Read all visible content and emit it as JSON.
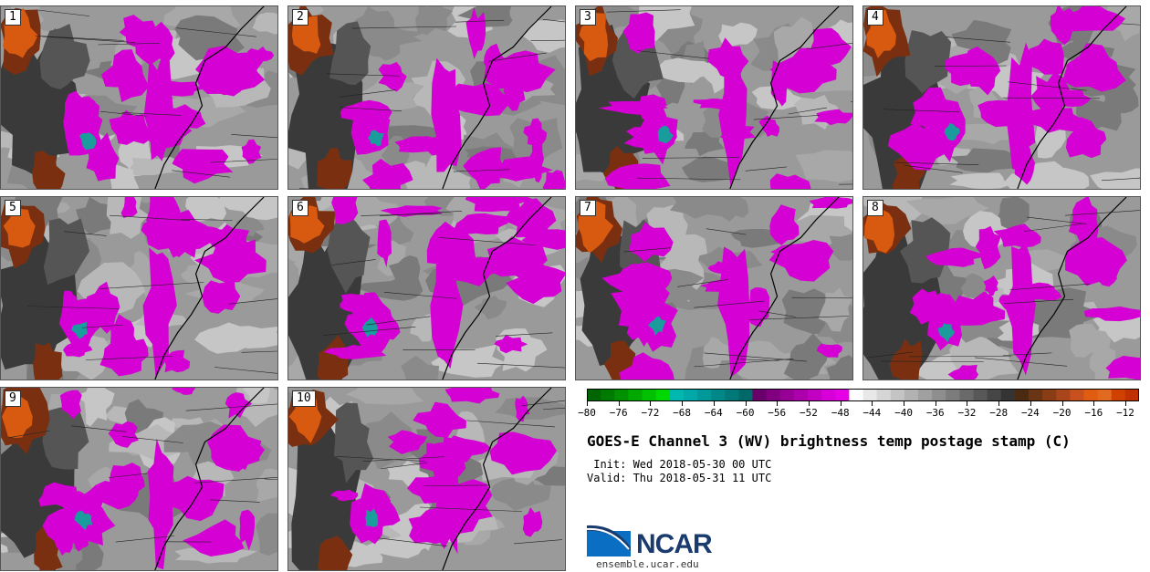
{
  "panels": [
    {
      "label": "1"
    },
    {
      "label": "2"
    },
    {
      "label": "3"
    },
    {
      "label": "4"
    },
    {
      "label": "5"
    },
    {
      "label": "6"
    },
    {
      "label": "7"
    },
    {
      "label": "8"
    },
    {
      "label": "9"
    },
    {
      "label": "10"
    }
  ],
  "colorbar": {
    "ticks": [
      "−80",
      "−76",
      "−72",
      "−68",
      "−64",
      "−60",
      "−56",
      "−52",
      "−48",
      "−44",
      "−40",
      "−36",
      "−32",
      "−28",
      "−24",
      "−20",
      "−16",
      "−12"
    ],
    "colors": [
      "#006400",
      "#007a00",
      "#009000",
      "#00a800",
      "#00c000",
      "#00d800",
      "#00b8b0",
      "#00a8a8",
      "#009898",
      "#008888",
      "#007878",
      "#006868",
      "#6a006a",
      "#800080",
      "#960096",
      "#ac00ac",
      "#c200c2",
      "#d800d8",
      "#e600e6",
      "#ffffff",
      "#e8e8e8",
      "#d6d6d6",
      "#c4c4c4",
      "#b2b2b2",
      "#a0a0a0",
      "#8e8e8e",
      "#7c7c7c",
      "#6a6a6a",
      "#585858",
      "#464646",
      "#343434",
      "#4a2a10",
      "#6a3515",
      "#8a3d15",
      "#a8451a",
      "#c8501e",
      "#e05c10",
      "#e06a20",
      "#d04000",
      "#c03000"
    ]
  },
  "title": "GOES-E Channel 3 (WV) brightness temp postage stamp (C)",
  "init": " Init: Wed 2018-05-30 00 UTC",
  "valid": "Valid: Thu 2018-05-31 11 UTC",
  "logo": {
    "text": "NCAR",
    "url": "ensemble.ucar.edu"
  },
  "palette": {
    "magenta": "#d400d4",
    "teal": "#1a9c9c",
    "dark": "#3a3a3a",
    "brown": "#7a3010",
    "orange": "#d85a10",
    "light": "#c8c8c8"
  }
}
